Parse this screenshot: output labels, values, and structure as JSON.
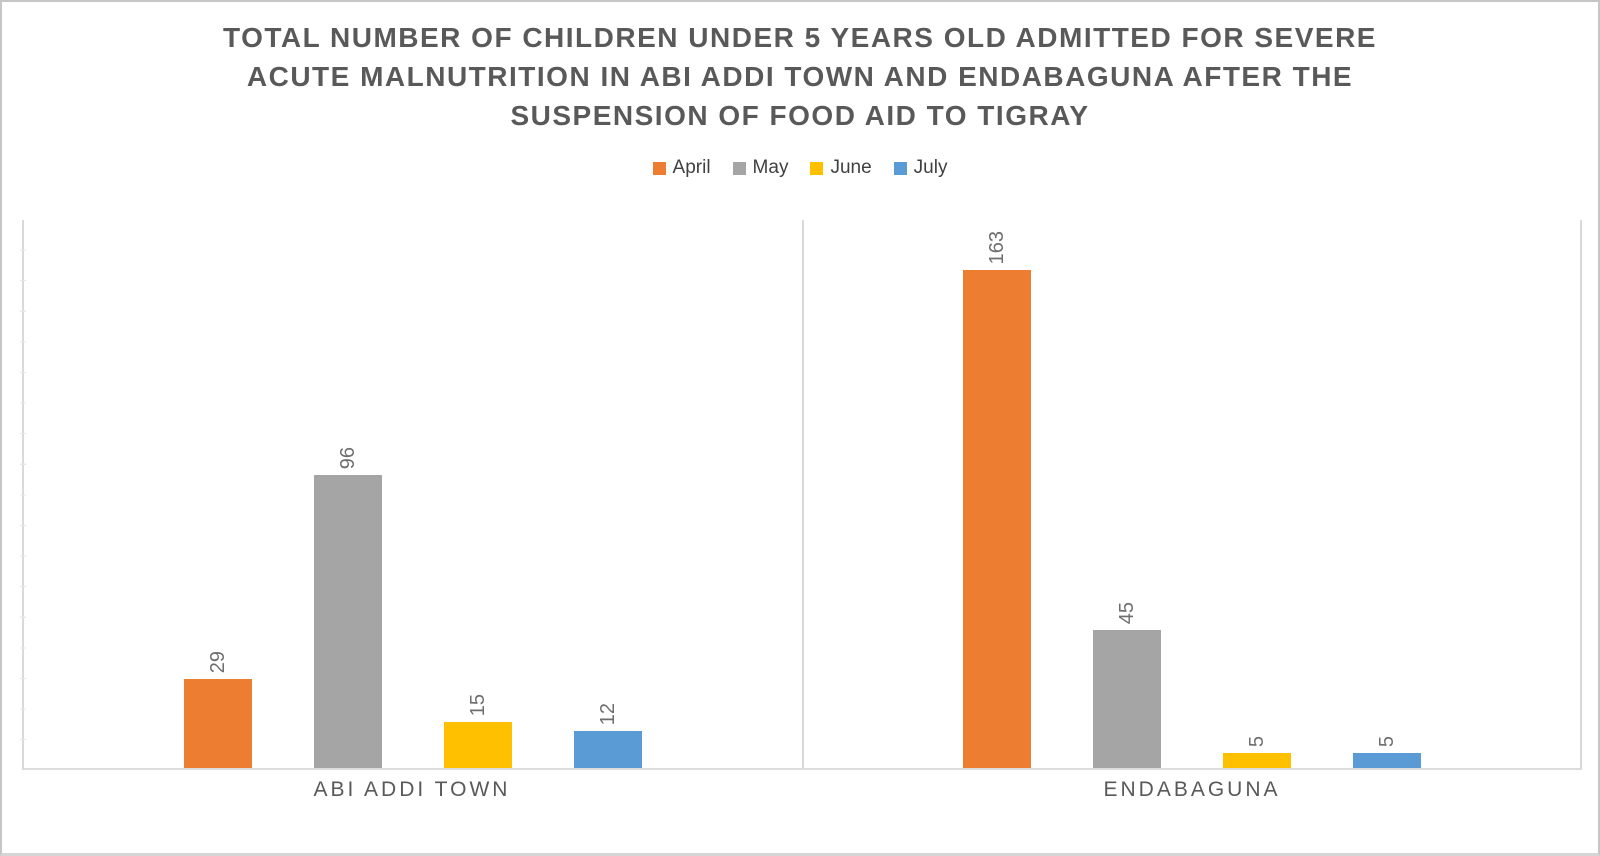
{
  "figure": {
    "title_lines": [
      "TOTAL NUMBER OF CHILDREN UNDER 5 YEARS OLD ADMITTED FOR SEVERE",
      "ACUTE MALNUTRITION IN ABI ADDI TOWN AND ENDABAGUNA AFTER THE",
      "SUSPENSION OF FOOD AID TO TIGRAY"
    ]
  },
  "chart_data": {
    "type": "bar",
    "title": "TOTAL NUMBER OF CHILDREN UNDER 5 YEARS OLD ADMITTED FOR SEVERE ACUTE MALNUTRITION IN ABI ADDI TOWN AND ENDABAGUNA AFTER THE SUSPENSION OF FOOD AID TO TIGRAY",
    "categories": [
      "ABI ADDI TOWN",
      "ENDABAGUNA"
    ],
    "series": [
      {
        "name": "April",
        "color": "#ED7D31",
        "values": [
          29,
          163
        ]
      },
      {
        "name": "May",
        "color": "#A5A5A5",
        "values": [
          96,
          45
        ]
      },
      {
        "name": "June",
        "color": "#FFC000",
        "values": [
          15,
          5
        ]
      },
      {
        "name": "July",
        "color": "#5B9BD5",
        "values": [
          12,
          5
        ]
      }
    ],
    "data_labels": [
      [
        "29",
        "96",
        "15",
        "12"
      ],
      [
        "163",
        "45",
        "5",
        "5"
      ]
    ],
    "xlabel": "",
    "ylabel": "",
    "ylim": [
      0,
      180
    ],
    "grid": false,
    "legend_position": "top",
    "data_label_rotation": -90
  },
  "style": {
    "title_color": "#595959",
    "data_label_color": "#6E6E6E",
    "category_label_color": "#595959",
    "legend_text_color": "#404040",
    "axis_line_color": "#D9D9D9",
    "figure_border_color": "#C6C6C6",
    "background": "#FFFFFF"
  }
}
